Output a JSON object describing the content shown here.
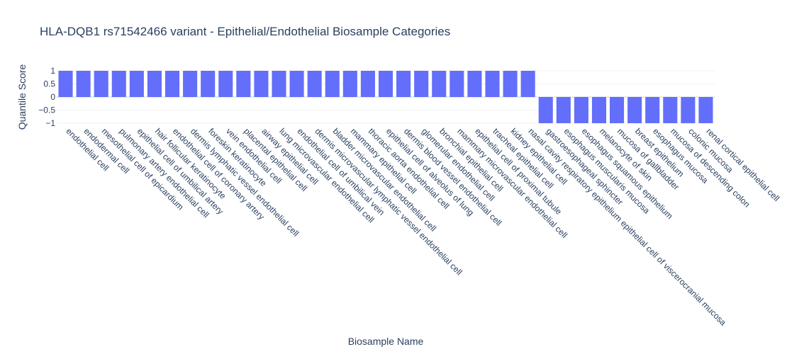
{
  "chart_data": {
    "type": "bar",
    "title": "HLA-DQB1 rs71542466 variant - Epithelial/Endothelial Biosample Categories",
    "xlabel": "Biosample Name",
    "ylabel": "Quantile Score",
    "ylim": [
      -1,
      1
    ],
    "yticks": [
      1,
      0.5,
      0,
      -0.5,
      -1
    ],
    "ytick_labels": [
      "1",
      "0.5",
      "0",
      "−0.5",
      "−1"
    ],
    "bar_color": "#636efa",
    "grid": true,
    "categories": [
      "endothelial cell",
      "endodermal cell",
      "mesothelial cell of epicardium",
      "pulmonary artery endothelial cell",
      "epithelial cell of umbilical artery",
      "hair follicular keratinocyte",
      "endothelial cell of coronary artery",
      "dermis lymphatic vessel endothelial cell",
      "foreskin keratinocyte",
      "vein endothelial cell",
      "placental epithelial cell",
      "airway epithelial cell",
      "lung microvascular endothelial cell",
      "endothelial cell of umbilical vein",
      "dermis microvascular lymphatic vessel endothelial cell",
      "bladder microvascular endothelial cell",
      "mammary epithelial cell",
      "thoracic aorta endothelial cell",
      "epithelial cell of alveolus of lung",
      "dermis blood vessel endothelial cell",
      "glomerular endothelial cell",
      "bronchial epithelial cell",
      "mammary microvascular endothelial cell",
      "epithelial cell of proximal tubule",
      "tracheal epithelial cell",
      "kidney epithelial cell",
      "nasal cavity respiratory epithelium epithelial cell of viscerocranial mucosa",
      "gastroesophageal sphincter",
      "esophagus muscularis mucosa",
      "esophagus squamous epithelium",
      "melanocyte of skin",
      "mucosa of gallbladder",
      "breast epithelium",
      "esophagus mucosa",
      "mucosa of descending colon",
      "colonic mucosa",
      "renal cortical epithelial cell"
    ],
    "values": [
      1,
      1,
      1,
      1,
      1,
      1,
      1,
      1,
      1,
      1,
      1,
      1,
      1,
      1,
      1,
      1,
      1,
      1,
      1,
      1,
      1,
      1,
      1,
      1,
      1,
      1,
      1,
      -1,
      -1,
      -1,
      -1,
      -1,
      -1,
      -1,
      -1,
      -1,
      -1
    ]
  }
}
